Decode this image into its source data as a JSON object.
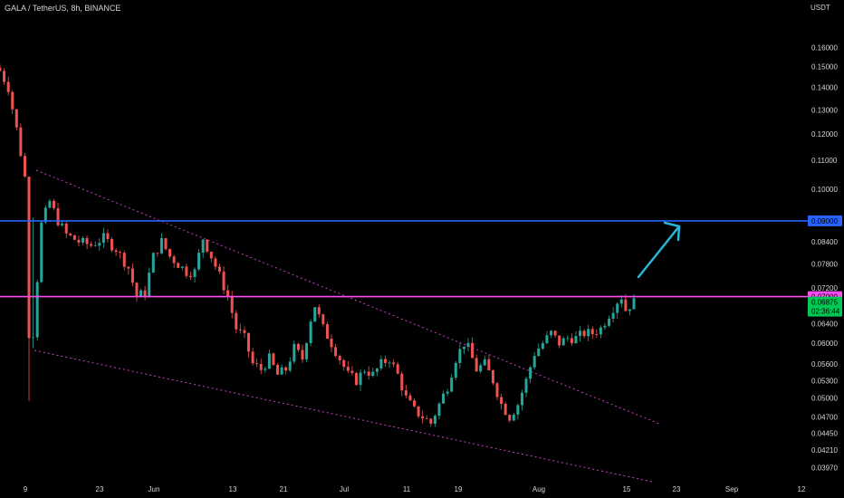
{
  "header": {
    "symbol_title": "GALA / TetherUS, 8h, BINANCE",
    "price_unit": "USDT"
  },
  "colors": {
    "background": "#000000",
    "up_candle": "#26a69a",
    "down_candle": "#ef5350",
    "axis_text": "#d1d4dc",
    "resistance_line": "#2962ff",
    "support_line": "#ff4df2",
    "wedge_lines": "#c93fc4",
    "arrow": "#29b6d6",
    "last_price_badge": "#00c853"
  },
  "chart_data": {
    "type": "candlestick",
    "x_axis": {
      "ticks": [
        "9",
        "23",
        "Jun",
        "13",
        "21",
        "Jul",
        "11",
        "19",
        "Aug",
        "15",
        "23",
        "Sep",
        "12"
      ]
    },
    "y_axis": {
      "scale": "log",
      "unit": "USDT",
      "range": [
        0.0387,
        0.168
      ],
      "ticks": [
        "0.16000",
        "0.15000",
        "0.14000",
        "0.13000",
        "0.12000",
        "0.11000",
        "0.10000",
        "0.08400",
        "0.07800",
        "0.07200",
        "0.06400",
        "0.06000",
        "0.05600",
        "0.05300",
        "0.05000",
        "0.04700",
        "0.04450",
        "0.04210",
        "0.03970"
      ]
    },
    "approx_close_path": [
      [
        0,
        0.148
      ],
      [
        2,
        0.14
      ],
      [
        4,
        0.122
      ],
      [
        6,
        0.104
      ],
      [
        7,
        0.062
      ],
      [
        8,
        0.062
      ],
      [
        10,
        0.089
      ],
      [
        12,
        0.096
      ],
      [
        14,
        0.09
      ],
      [
        16,
        0.086
      ],
      [
        19,
        0.084
      ],
      [
        22,
        0.083
      ],
      [
        25,
        0.085
      ],
      [
        28,
        0.082
      ],
      [
        31,
        0.077
      ],
      [
        33,
        0.07
      ],
      [
        35,
        0.071
      ],
      [
        37,
        0.08
      ],
      [
        39,
        0.084
      ],
      [
        41,
        0.08
      ],
      [
        43,
        0.078
      ],
      [
        45,
        0.076
      ],
      [
        47,
        0.076
      ],
      [
        49,
        0.085
      ],
      [
        51,
        0.08
      ],
      [
        53,
        0.075
      ],
      [
        55,
        0.07
      ],
      [
        57,
        0.063
      ],
      [
        59,
        0.061
      ],
      [
        61,
        0.056
      ],
      [
        63,
        0.055
      ],
      [
        65,
        0.057
      ],
      [
        67,
        0.054
      ],
      [
        69,
        0.055
      ],
      [
        71,
        0.059
      ],
      [
        73,
        0.057
      ],
      [
        75,
        0.065
      ],
      [
        76,
        0.068
      ],
      [
        78,
        0.063
      ],
      [
        80,
        0.06
      ],
      [
        82,
        0.057
      ],
      [
        84,
        0.054
      ],
      [
        86,
        0.053
      ],
      [
        88,
        0.055
      ],
      [
        90,
        0.054
      ],
      [
        92,
        0.056
      ],
      [
        94,
        0.057
      ],
      [
        96,
        0.054
      ],
      [
        98,
        0.05
      ],
      [
        100,
        0.048
      ],
      [
        102,
        0.047
      ],
      [
        104,
        0.046
      ],
      [
        106,
        0.049
      ],
      [
        108,
        0.052
      ],
      [
        110,
        0.057
      ],
      [
        112,
        0.06
      ],
      [
        113,
        0.059
      ],
      [
        115,
        0.055
      ],
      [
        117,
        0.056
      ],
      [
        119,
        0.053
      ],
      [
        121,
        0.049
      ],
      [
        123,
        0.047
      ],
      [
        125,
        0.049
      ],
      [
        127,
        0.053
      ],
      [
        129,
        0.058
      ],
      [
        131,
        0.06
      ],
      [
        133,
        0.062
      ],
      [
        135,
        0.06
      ],
      [
        137,
        0.061
      ],
      [
        139,
        0.061
      ],
      [
        141,
        0.062
      ],
      [
        143,
        0.062
      ],
      [
        145,
        0.063
      ],
      [
        147,
        0.066
      ],
      [
        149,
        0.069
      ],
      [
        150,
        0.07
      ],
      [
        151,
        0.067
      ],
      [
        152,
        0.068
      ],
      [
        153,
        0.06875
      ]
    ],
    "price_levels": [
      {
        "value": 0.09,
        "label": "0.09000",
        "color": "#2962ff"
      },
      {
        "value": 0.07,
        "label": "0.07000",
        "color": "#ff4df2"
      }
    ],
    "last_price": {
      "value": 0.06875,
      "label": "0.06875",
      "countdown": "02:36:44"
    }
  }
}
